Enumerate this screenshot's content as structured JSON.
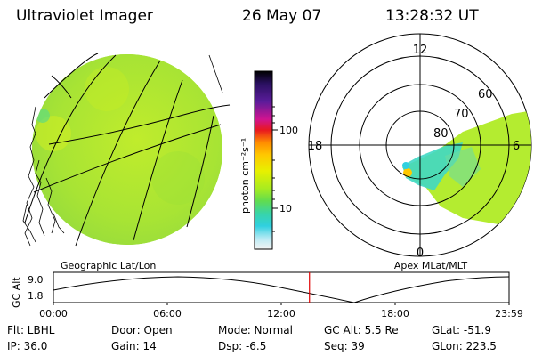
{
  "header": {
    "instrument": "Ultraviolet Imager",
    "date": "26 May 07",
    "time": "13:28:32 UT"
  },
  "left_panel": {
    "label": "Geographic Lat/Lon"
  },
  "colorbar": {
    "unit_label": "photon cm⁻²s⁻¹",
    "tick_100": "100",
    "tick_10": "10",
    "colors": [
      "#000000",
      "#2a1060",
      "#4a1a8a",
      "#c8148c",
      "#e01428",
      "#ff8c00",
      "#ffc800",
      "#e8f000",
      "#b4f000",
      "#6ee040",
      "#40d890",
      "#30d0d8",
      "#a8e8f0",
      "#f0f0f0"
    ]
  },
  "right_panel": {
    "label": "Apex MLat/MLT",
    "mlt_12": "12",
    "mlt_18": "18",
    "mlt_6": "6",
    "mlt_0": "0",
    "lat_60": "60",
    "lat_70": "70",
    "lat_80": "80"
  },
  "altitude_plot": {
    "ylabel": "GC Alt",
    "y_top": "9.0",
    "y_bottom": "1.8",
    "x_ticks": [
      "00:00",
      "06:00",
      "12:00",
      "18:00",
      "23:59"
    ],
    "current_time_fraction": 0.562
  },
  "info": {
    "flt": "Flt: LBHL",
    "ip": "IP: 36.0",
    "door": "Door: Open",
    "gain": "Gain: 14",
    "mode": "Mode: Normal",
    "dsp": "Dsp:    -6.5",
    "gc_alt": "GC Alt: 5.5 Re",
    "seq": "Seq: 39",
    "glat": "GLat:  -51.9",
    "glon": "GLon:  223.5"
  },
  "colors": {
    "aurora_green": "#b4ec30",
    "aurora_cyan": "#3cd8d0",
    "red_marker": "#e00000"
  }
}
